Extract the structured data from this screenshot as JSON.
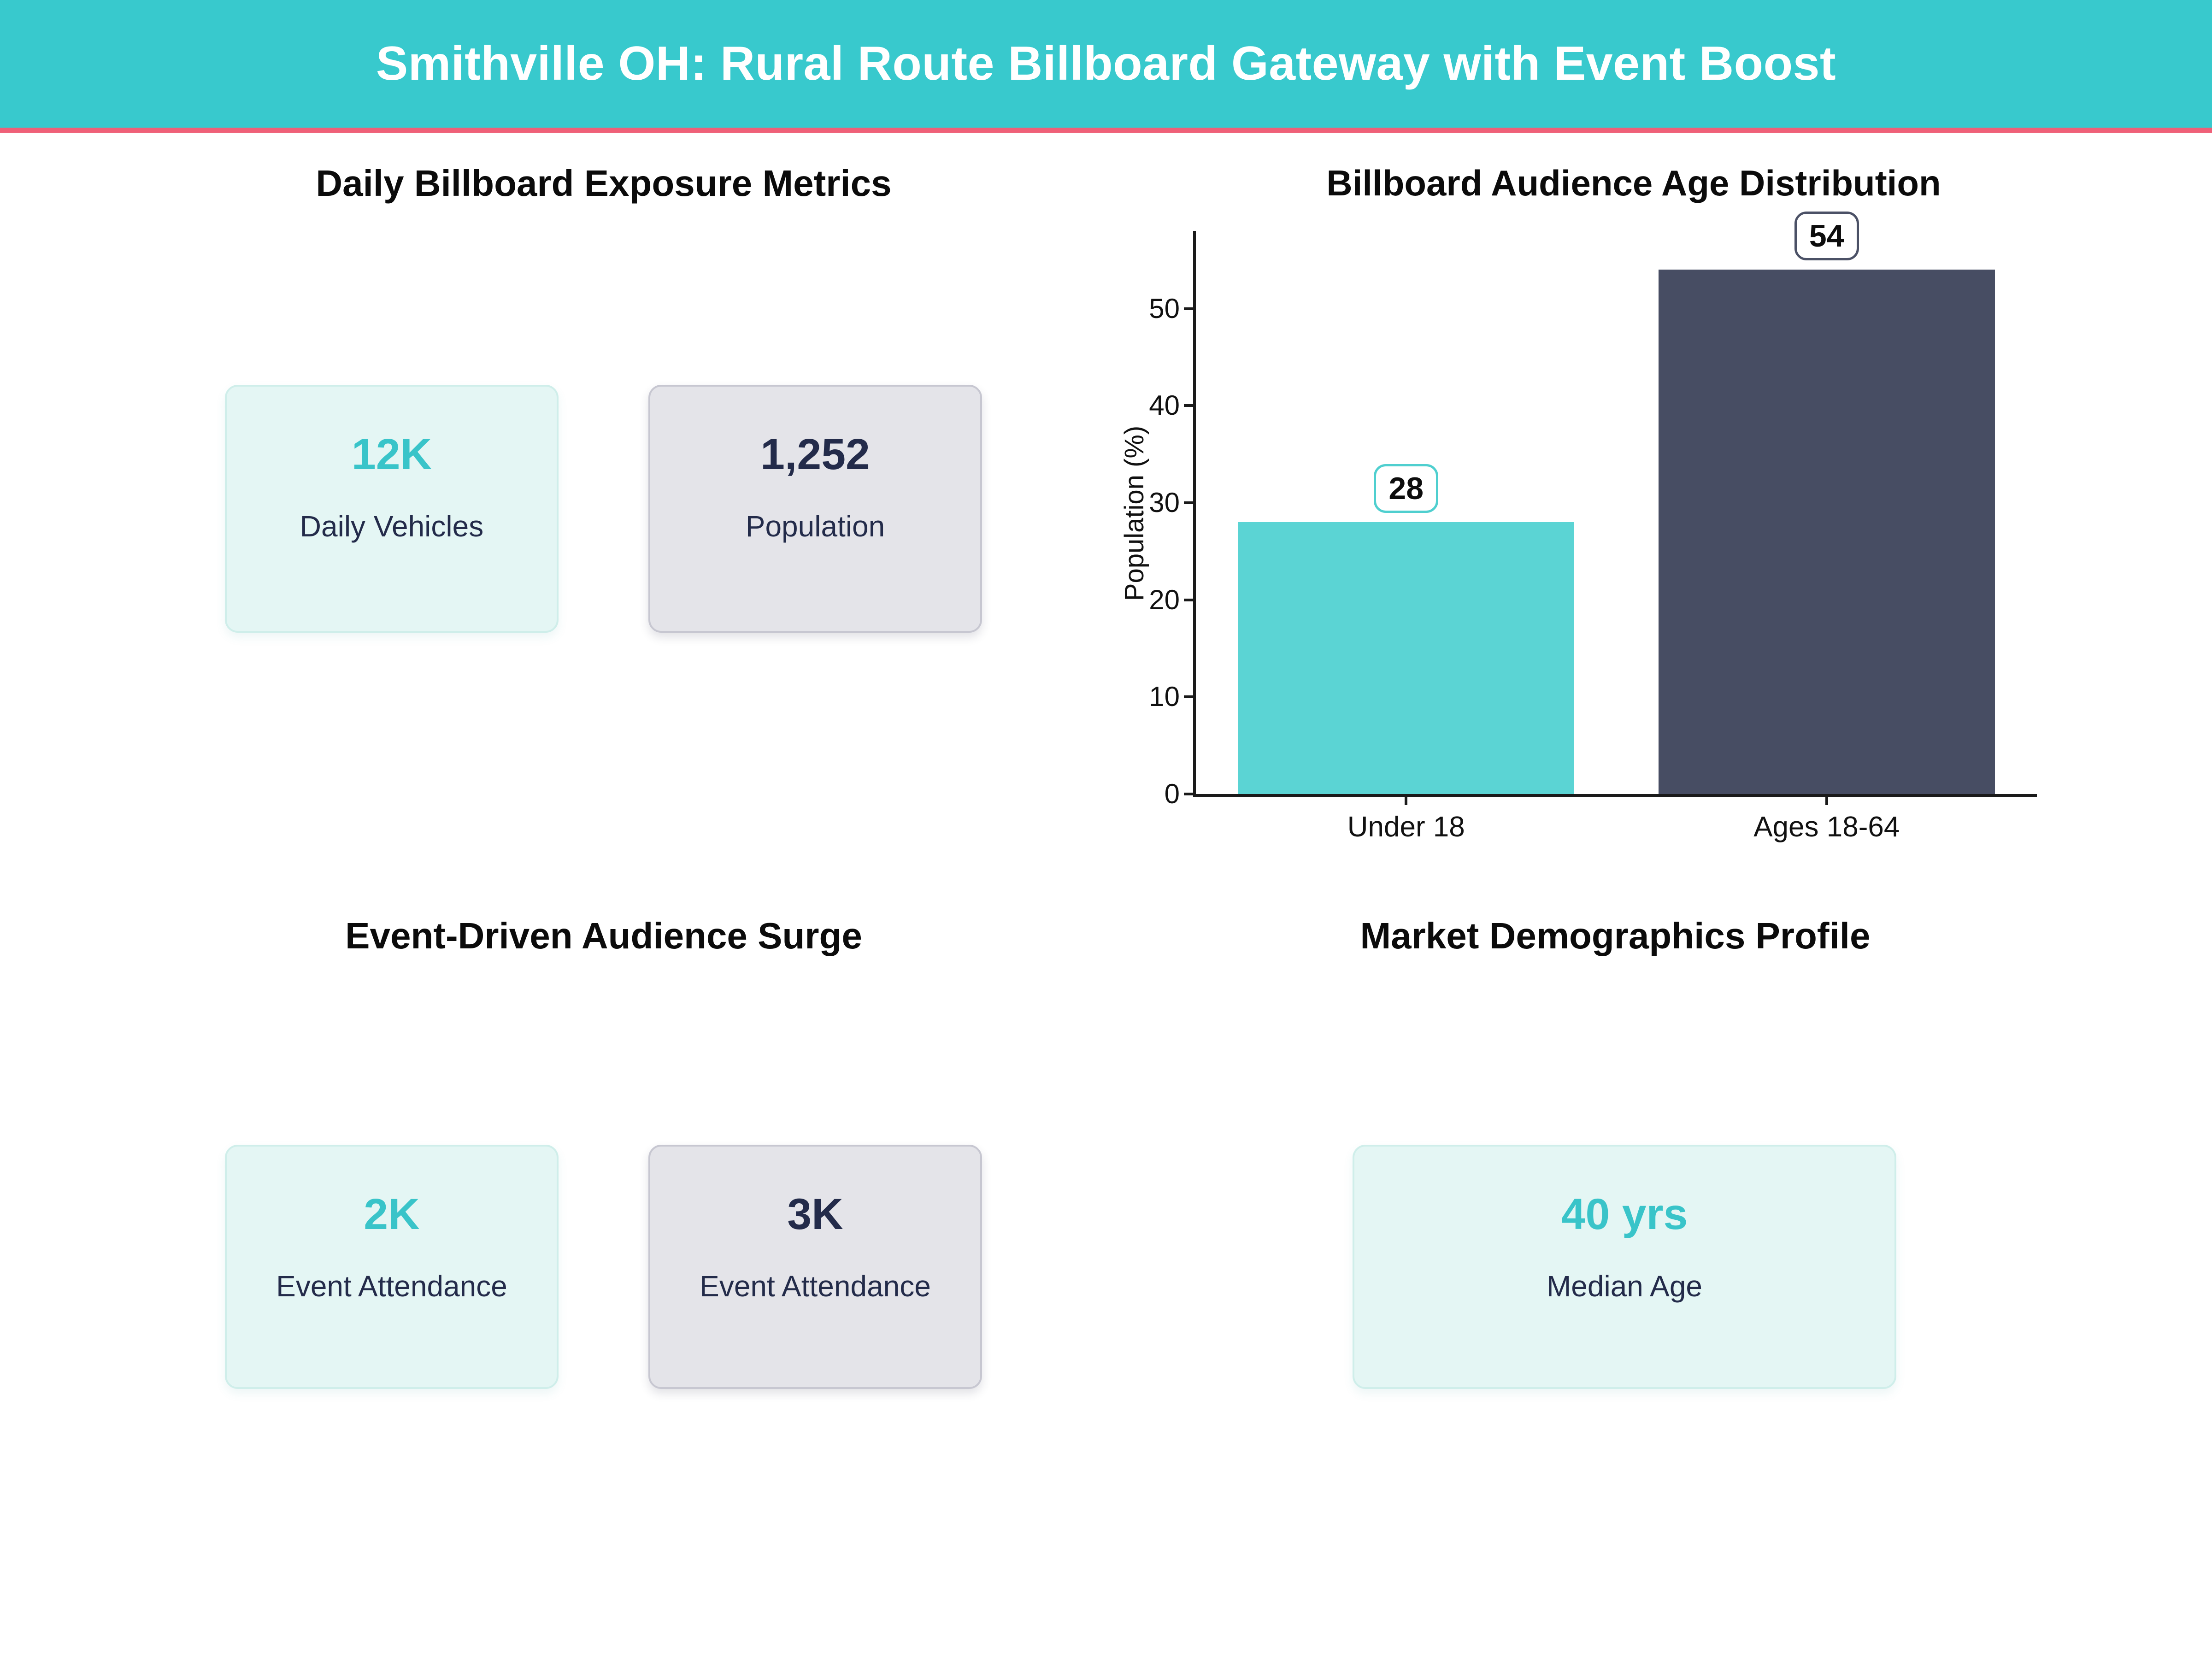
{
  "page": {
    "title": "Smithville OH: Rural Route Billboard Gateway with Event Boost"
  },
  "theme": {
    "header_bg": "#38c9cd",
    "accent_pink": "#ef6078",
    "teal_text": "#39c4c9",
    "navy_text": "#232b4a",
    "mint_card_bg": "#e4f6f4",
    "mint_card_border": "#cfeeea",
    "gray_card_bg": "#e4e4e9",
    "gray_card_border": "#c7c7d1"
  },
  "sections": [
    {
      "id": "exposure",
      "title": "Daily Billboard Exposure Metrics",
      "stats": [
        {
          "value": "12K",
          "label": "Daily Vehicles",
          "theme": "teal"
        },
        {
          "value": "1,252",
          "label": "Population",
          "theme": "gray"
        }
      ]
    },
    {
      "id": "age-distribution",
      "title": "Billboard Audience Age Distribution"
    },
    {
      "id": "surge",
      "title": "Event-Driven Audience Surge",
      "stats": [
        {
          "value": "2K",
          "label": "Event Attendance",
          "theme": "teal"
        },
        {
          "value": "3K",
          "label": "Event Attendance",
          "theme": "gray"
        }
      ]
    },
    {
      "id": "demographics",
      "title": "Market Demographics Profile",
      "stats": [
        {
          "value": "40 yrs",
          "label": "Median Age",
          "theme": "teal"
        }
      ]
    }
  ],
  "chart_data": {
    "type": "bar",
    "title": "Billboard Audience Age Distribution",
    "categories": [
      "Under 18",
      "Ages 18-64"
    ],
    "values": [
      28,
      54
    ],
    "value_labels": [
      "28",
      "54"
    ],
    "bar_colors": [
      "#5bd4d4",
      "#474d63"
    ],
    "label_box_border_colors": [
      "#4fcfcf",
      "#4b5166"
    ],
    "xlabel": "",
    "ylabel": "Population (%)",
    "yticks": [
      0,
      10,
      20,
      30,
      40,
      50
    ],
    "ylim": [
      0,
      58
    ],
    "grid": false,
    "legend": false,
    "axis_color": "#1a1a1a"
  }
}
